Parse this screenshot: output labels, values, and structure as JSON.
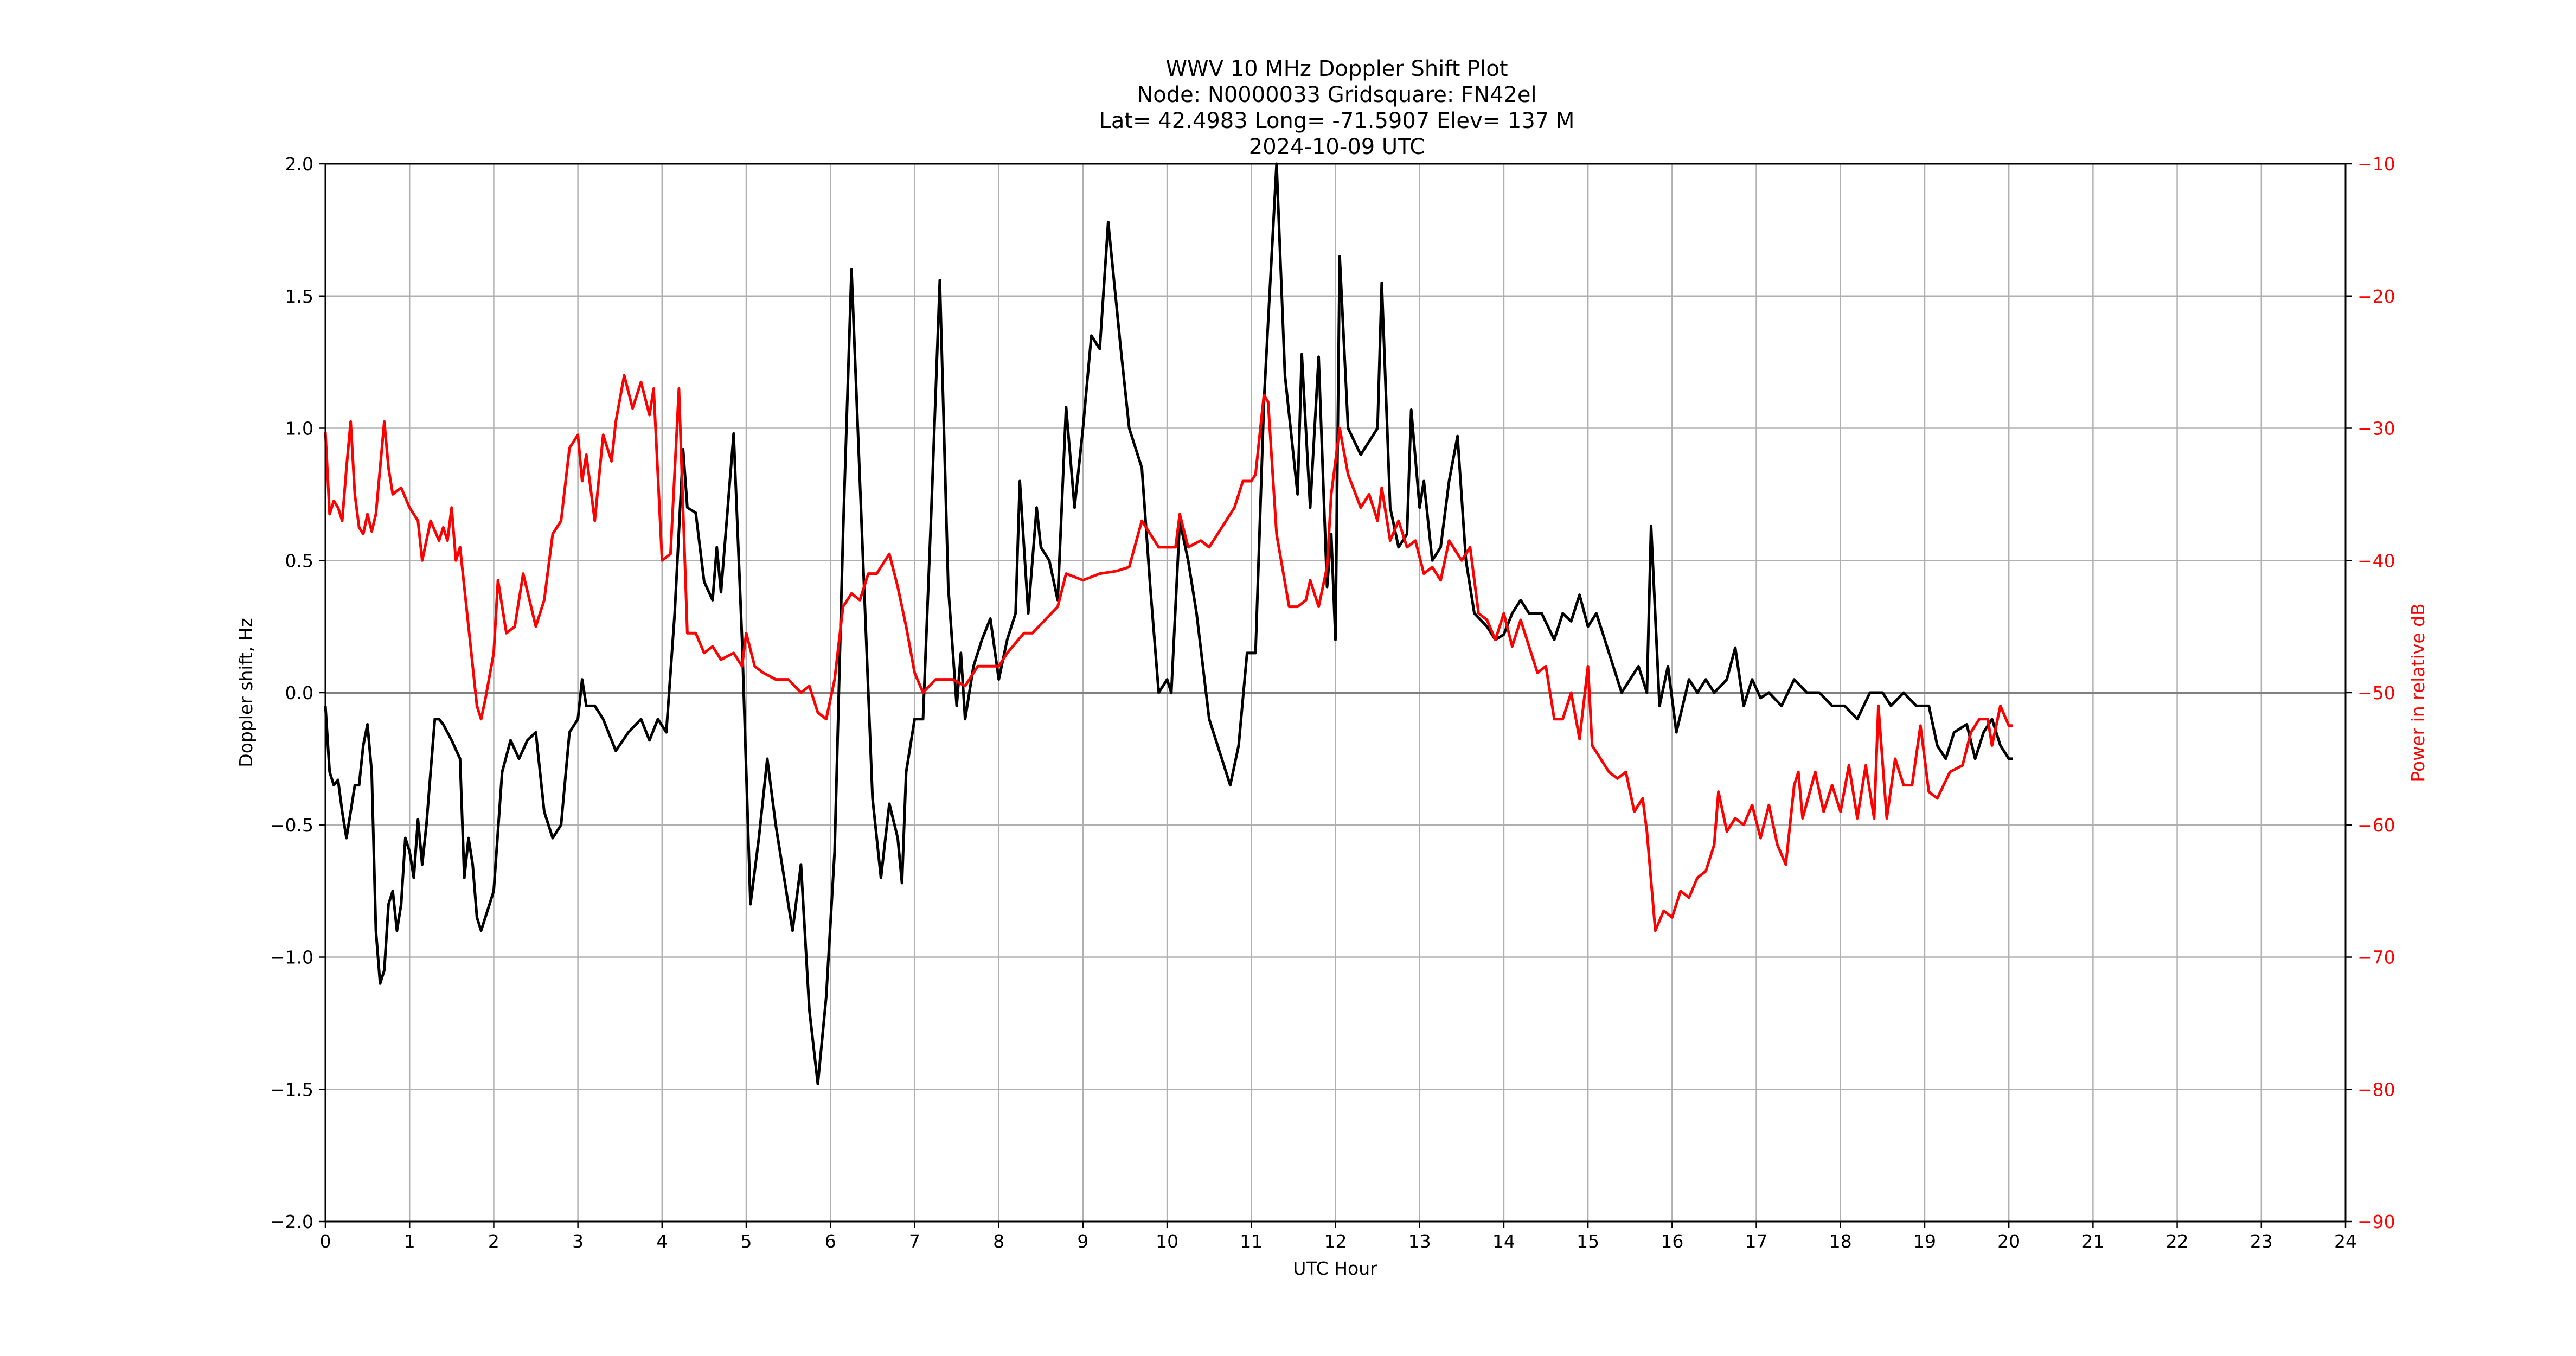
{
  "figure": {
    "title_lines": [
      "WWV 10 MHz Doppler Shift Plot",
      "Node:  N0000033     Gridsquare:  FN42el",
      "Lat= 42.4983    Long= -71.5907    Elev= 137 M",
      "2024-10-09  UTC"
    ],
    "xlabel": "UTC Hour",
    "ylabel_left": "Doppler shift, Hz",
    "ylabel_right": "Power in relative dB",
    "colors": {
      "doppler": "#000000",
      "power": "#ff0000",
      "grid": "#b0b0b0",
      "zero_line": "#808080",
      "right_axis_text": "#ff0000"
    }
  },
  "chart_data": {
    "type": "line",
    "title": "WWV 10 MHz Doppler Shift Plot",
    "subtitle": "Node:  N0000033     Gridsquare:  FN42el | Lat= 42.4983    Long= -71.5907    Elev= 137 M | 2024-10-09  UTC",
    "xlabel": "UTC Hour",
    "ylabel": "Doppler shift, Hz",
    "y2label": "Power in relative dB",
    "xlim": [
      0,
      24
    ],
    "ylim": [
      -2.0,
      2.0
    ],
    "y2lim": [
      -90,
      -10
    ],
    "xticks": [
      "0",
      "1",
      "2",
      "3",
      "4",
      "5",
      "6",
      "7",
      "8",
      "9",
      "10",
      "11",
      "12",
      "13",
      "14",
      "15",
      "16",
      "17",
      "18",
      "19",
      "20",
      "21",
      "22",
      "23",
      "24"
    ],
    "yticks": [
      "−2.0",
      "−1.5",
      "−1.0",
      "−0.5",
      "0.0",
      "0.5",
      "1.0",
      "1.5",
      "2.0"
    ],
    "y2ticks": [
      "−90",
      "−80",
      "−70",
      "−60",
      "−50",
      "−40",
      "−30",
      "−20",
      "−10"
    ],
    "grid": true,
    "legend": "none",
    "series": [
      {
        "name": "Doppler shift, Hz",
        "axis": "left",
        "color": "#000000",
        "x": [
          0.0,
          0.05,
          0.1,
          0.15,
          0.2,
          0.25,
          0.3,
          0.35,
          0.4,
          0.45,
          0.5,
          0.55,
          0.6,
          0.65,
          0.7,
          0.75,
          0.8,
          0.85,
          0.9,
          0.95,
          1.0,
          1.05,
          1.1,
          1.15,
          1.2,
          1.25,
          1.3,
          1.35,
          1.4,
          1.5,
          1.6,
          1.65,
          1.7,
          1.75,
          1.8,
          1.85,
          1.95,
          2.0,
          2.1,
          2.2,
          2.3,
          2.4,
          2.5,
          2.6,
          2.7,
          2.8,
          2.9,
          3.0,
          3.05,
          3.1,
          3.2,
          3.3,
          3.45,
          3.6,
          3.75,
          3.85,
          3.95,
          4.05,
          4.15,
          4.25,
          4.3,
          4.4,
          4.5,
          4.6,
          4.65,
          4.7,
          4.85,
          4.95,
          5.05,
          5.15,
          5.25,
          5.35,
          5.45,
          5.55,
          5.65,
          5.75,
          5.85,
          5.95,
          6.05,
          6.15,
          6.25,
          6.35,
          6.5,
          6.6,
          6.7,
          6.8,
          6.85,
          6.9,
          7.0,
          7.1,
          7.2,
          7.3,
          7.4,
          7.5,
          7.55,
          7.6,
          7.7,
          7.8,
          7.9,
          8.0,
          8.1,
          8.2,
          8.25,
          8.35,
          8.45,
          8.5,
          8.6,
          8.7,
          8.8,
          8.9,
          9.0,
          9.1,
          9.2,
          9.3,
          9.45,
          9.55,
          9.7,
          9.8,
          9.9,
          10.0,
          10.05,
          10.15,
          10.25,
          10.35,
          10.5,
          10.6,
          10.75,
          10.85,
          10.95,
          11.05,
          11.15,
          11.2,
          11.3,
          11.4,
          11.55,
          11.6,
          11.7,
          11.8,
          11.9,
          11.95,
          12.0,
          12.05,
          12.15,
          12.3,
          12.4,
          12.5,
          12.55,
          12.65,
          12.75,
          12.85,
          12.9,
          13.0,
          13.05,
          13.15,
          13.25,
          13.35,
          13.45,
          13.55,
          13.65,
          13.8,
          13.9,
          14.0,
          14.1,
          14.2,
          14.3,
          14.45,
          14.6,
          14.7,
          14.8,
          14.9,
          15.0,
          15.1,
          15.2,
          15.3,
          15.4,
          15.5,
          15.6,
          15.7,
          15.75,
          15.85,
          15.95,
          16.05,
          16.2,
          16.3,
          16.4,
          16.5,
          16.65,
          16.75,
          16.85,
          16.95,
          17.05,
          17.15,
          17.3,
          17.45,
          17.6,
          17.75,
          17.9,
          18.05,
          18.2,
          18.35,
          18.5,
          18.6,
          18.75,
          18.9,
          19.05,
          19.15,
          19.25,
          19.35,
          19.5,
          19.6,
          19.7,
          19.8,
          19.9,
          20.0,
          20.05
        ],
        "values": [
          -0.05,
          -0.3,
          -0.35,
          -0.33,
          -0.45,
          -0.55,
          -0.45,
          -0.35,
          -0.35,
          -0.2,
          -0.12,
          -0.3,
          -0.9,
          -1.1,
          -1.05,
          -0.8,
          -0.75,
          -0.9,
          -0.8,
          -0.55,
          -0.6,
          -0.7,
          -0.48,
          -0.65,
          -0.5,
          -0.3,
          -0.1,
          -0.1,
          -0.12,
          -0.18,
          -0.25,
          -0.7,
          -0.55,
          -0.65,
          -0.85,
          -0.9,
          -0.8,
          -0.75,
          -0.3,
          -0.18,
          -0.25,
          -0.18,
          -0.15,
          -0.45,
          -0.55,
          -0.5,
          -0.15,
          -0.1,
          0.05,
          -0.05,
          -0.05,
          -0.1,
          -0.22,
          -0.15,
          -0.1,
          -0.18,
          -0.1,
          -0.15,
          0.3,
          0.92,
          0.7,
          0.68,
          0.42,
          0.35,
          0.55,
          0.38,
          0.98,
          0.2,
          -0.8,
          -0.55,
          -0.25,
          -0.5,
          -0.7,
          -0.9,
          -0.65,
          -1.2,
          -1.48,
          -1.15,
          -0.6,
          0.6,
          1.6,
          0.8,
          -0.4,
          -0.7,
          -0.42,
          -0.55,
          -0.72,
          -0.3,
          -0.1,
          -0.1,
          0.7,
          1.56,
          0.4,
          -0.05,
          0.15,
          -0.1,
          0.1,
          0.2,
          0.28,
          0.05,
          0.2,
          0.3,
          0.8,
          0.3,
          0.7,
          0.55,
          0.5,
          0.35,
          1.08,
          0.7,
          1.0,
          1.35,
          1.3,
          1.78,
          1.3,
          1.0,
          0.85,
          0.4,
          0.0,
          0.05,
          0.0,
          0.65,
          0.5,
          0.3,
          -0.1,
          -0.2,
          -0.35,
          -0.2,
          0.15,
          0.15,
          1.1,
          1.4,
          2.0,
          1.2,
          0.75,
          1.28,
          0.7,
          1.27,
          0.4,
          0.6,
          0.2,
          1.65,
          1.0,
          0.9,
          0.95,
          1.0,
          1.55,
          0.7,
          0.55,
          0.6,
          1.07,
          0.7,
          0.8,
          0.5,
          0.55,
          0.8,
          0.97,
          0.5,
          0.3,
          0.25,
          0.2,
          0.22,
          0.3,
          0.35,
          0.3,
          0.3,
          0.2,
          0.3,
          0.27,
          0.37,
          0.25,
          0.3,
          0.2,
          0.1,
          0.0,
          0.05,
          0.1,
          0.0,
          0.63,
          -0.05,
          0.1,
          -0.15,
          0.05,
          0.0,
          0.05,
          0.0,
          0.05,
          0.17,
          -0.05,
          0.05,
          -0.02,
          0.0,
          -0.05,
          0.05,
          0.0,
          0.0,
          -0.05,
          -0.05,
          -0.1,
          0.0,
          0.0,
          -0.05,
          0.0,
          -0.05,
          -0.05,
          -0.2,
          -0.25,
          -0.15,
          -0.12,
          -0.25,
          -0.15,
          -0.1,
          -0.2,
          -0.25,
          -0.25
        ]
      },
      {
        "name": "Power in relative dB",
        "axis": "right",
        "color": "#ff0000",
        "x": [
          0.0,
          0.05,
          0.1,
          0.15,
          0.2,
          0.25,
          0.3,
          0.35,
          0.4,
          0.45,
          0.5,
          0.55,
          0.6,
          0.65,
          0.7,
          0.75,
          0.8,
          0.9,
          1.0,
          1.1,
          1.15,
          1.25,
          1.35,
          1.4,
          1.45,
          1.5,
          1.55,
          1.6,
          1.7,
          1.8,
          1.85,
          1.9,
          2.0,
          2.05,
          2.15,
          2.25,
          2.35,
          2.5,
          2.6,
          2.7,
          2.8,
          2.9,
          3.0,
          3.05,
          3.1,
          3.2,
          3.3,
          3.4,
          3.45,
          3.55,
          3.65,
          3.75,
          3.85,
          3.9,
          4.0,
          4.1,
          4.2,
          4.3,
          4.4,
          4.5,
          4.6,
          4.7,
          4.85,
          4.95,
          5.0,
          5.1,
          5.2,
          5.35,
          5.5,
          5.65,
          5.75,
          5.85,
          5.95,
          6.05,
          6.15,
          6.25,
          6.35,
          6.45,
          6.55,
          6.7,
          6.8,
          6.9,
          7.0,
          7.1,
          7.25,
          7.45,
          7.6,
          7.75,
          8.0,
          8.1,
          8.3,
          8.4,
          8.55,
          8.7,
          8.8,
          9.0,
          9.2,
          9.4,
          9.55,
          9.7,
          9.8,
          9.9,
          10.1,
          10.15,
          10.25,
          10.4,
          10.5,
          10.65,
          10.8,
          10.9,
          11.0,
          11.05,
          11.15,
          11.2,
          11.3,
          11.45,
          11.55,
          11.65,
          11.7,
          11.8,
          11.9,
          11.95,
          12.05,
          12.15,
          12.3,
          12.4,
          12.5,
          12.55,
          12.65,
          12.75,
          12.85,
          12.95,
          13.05,
          13.15,
          13.25,
          13.35,
          13.5,
          13.6,
          13.7,
          13.8,
          13.9,
          14.0,
          14.1,
          14.2,
          14.3,
          14.4,
          14.5,
          14.6,
          14.7,
          14.8,
          14.9,
          15.0,
          15.05,
          15.15,
          15.25,
          15.35,
          15.45,
          15.55,
          15.65,
          15.7,
          15.8,
          15.9,
          16.0,
          16.1,
          16.2,
          16.3,
          16.4,
          16.5,
          16.55,
          16.65,
          16.75,
          16.85,
          16.95,
          17.05,
          17.15,
          17.25,
          17.35,
          17.45,
          17.5,
          17.55,
          17.7,
          17.8,
          17.9,
          18.0,
          18.1,
          18.2,
          18.3,
          18.4,
          18.45,
          18.55,
          18.65,
          18.75,
          18.85,
          18.95,
          19.05,
          19.15,
          19.3,
          19.45,
          19.55,
          19.65,
          19.75,
          19.8,
          19.9,
          20.0,
          20.05
        ],
        "values": [
          -30.3,
          -36.5,
          -35.5,
          -36,
          -37,
          -33,
          -29.5,
          -35,
          -37.5,
          -38,
          -36.5,
          -37.8,
          -36.5,
          -33,
          -29.5,
          -33,
          -35,
          -34.5,
          -36,
          -37,
          -40,
          -37,
          -38.5,
          -37.5,
          -38.5,
          -36,
          -40,
          -39,
          -45,
          -51,
          -52,
          -50.5,
          -47,
          -41.5,
          -45.5,
          -45,
          -41,
          -45,
          -43,
          -38,
          -37,
          -31.5,
          -30.5,
          -34,
          -32,
          -37,
          -30.5,
          -32.5,
          -29.5,
          -26,
          -28.5,
          -26.5,
          -29,
          -27,
          -40,
          -39.5,
          -27,
          -45.5,
          -45.5,
          -47,
          -46.5,
          -47.5,
          -47,
          -48,
          -45.5,
          -48,
          -48.5,
          -49,
          -49,
          -50,
          -49.5,
          -51.5,
          -52,
          -49,
          -43.5,
          -42.5,
          -43,
          -41,
          -41,
          -39.5,
          -42,
          -45,
          -48.5,
          -50,
          -49,
          -49,
          -49.5,
          -48,
          -48,
          -47,
          -45.5,
          -45.5,
          -44.5,
          -43.5,
          -41,
          -41.5,
          -41,
          -40.8,
          -40.5,
          -37,
          -38,
          -39,
          -39,
          -36.5,
          -39,
          -38.5,
          -39,
          -37.5,
          -36,
          -34,
          -34,
          -33.5,
          -27.5,
          -28,
          -38,
          -43.5,
          -43.5,
          -43,
          -41.5,
          -43.5,
          -40.5,
          -35,
          -30,
          -33.5,
          -36,
          -35,
          -37,
          -34.5,
          -38.5,
          -37,
          -39,
          -38.5,
          -41,
          -40.5,
          -41.5,
          -38.5,
          -40,
          -39,
          -44,
          -44.5,
          -46,
          -44,
          -46.5,
          -44.5,
          -46.5,
          -48.5,
          -48,
          -52,
          -52,
          -50,
          -53.5,
          -48,
          -54,
          -55,
          -56,
          -56.5,
          -56,
          -59,
          -58,
          -60.5,
          -68,
          -66.5,
          -67,
          -65,
          -65.5,
          -64,
          -63.5,
          -61.5,
          -57.5,
          -60.5,
          -59.5,
          -60,
          -58.5,
          -61,
          -58.5,
          -61.5,
          -63,
          -57,
          -56,
          -59.5,
          -56,
          -59,
          -57,
          -59,
          -55.5,
          -59.5,
          -55.5,
          -59.5,
          -51,
          -59.5,
          -55,
          -57,
          -57,
          -52.5,
          -57.5,
          -58,
          -56,
          -55.5,
          -53,
          -52,
          -52,
          -54,
          -51,
          -52.5,
          -52.5
        ]
      }
    ]
  }
}
